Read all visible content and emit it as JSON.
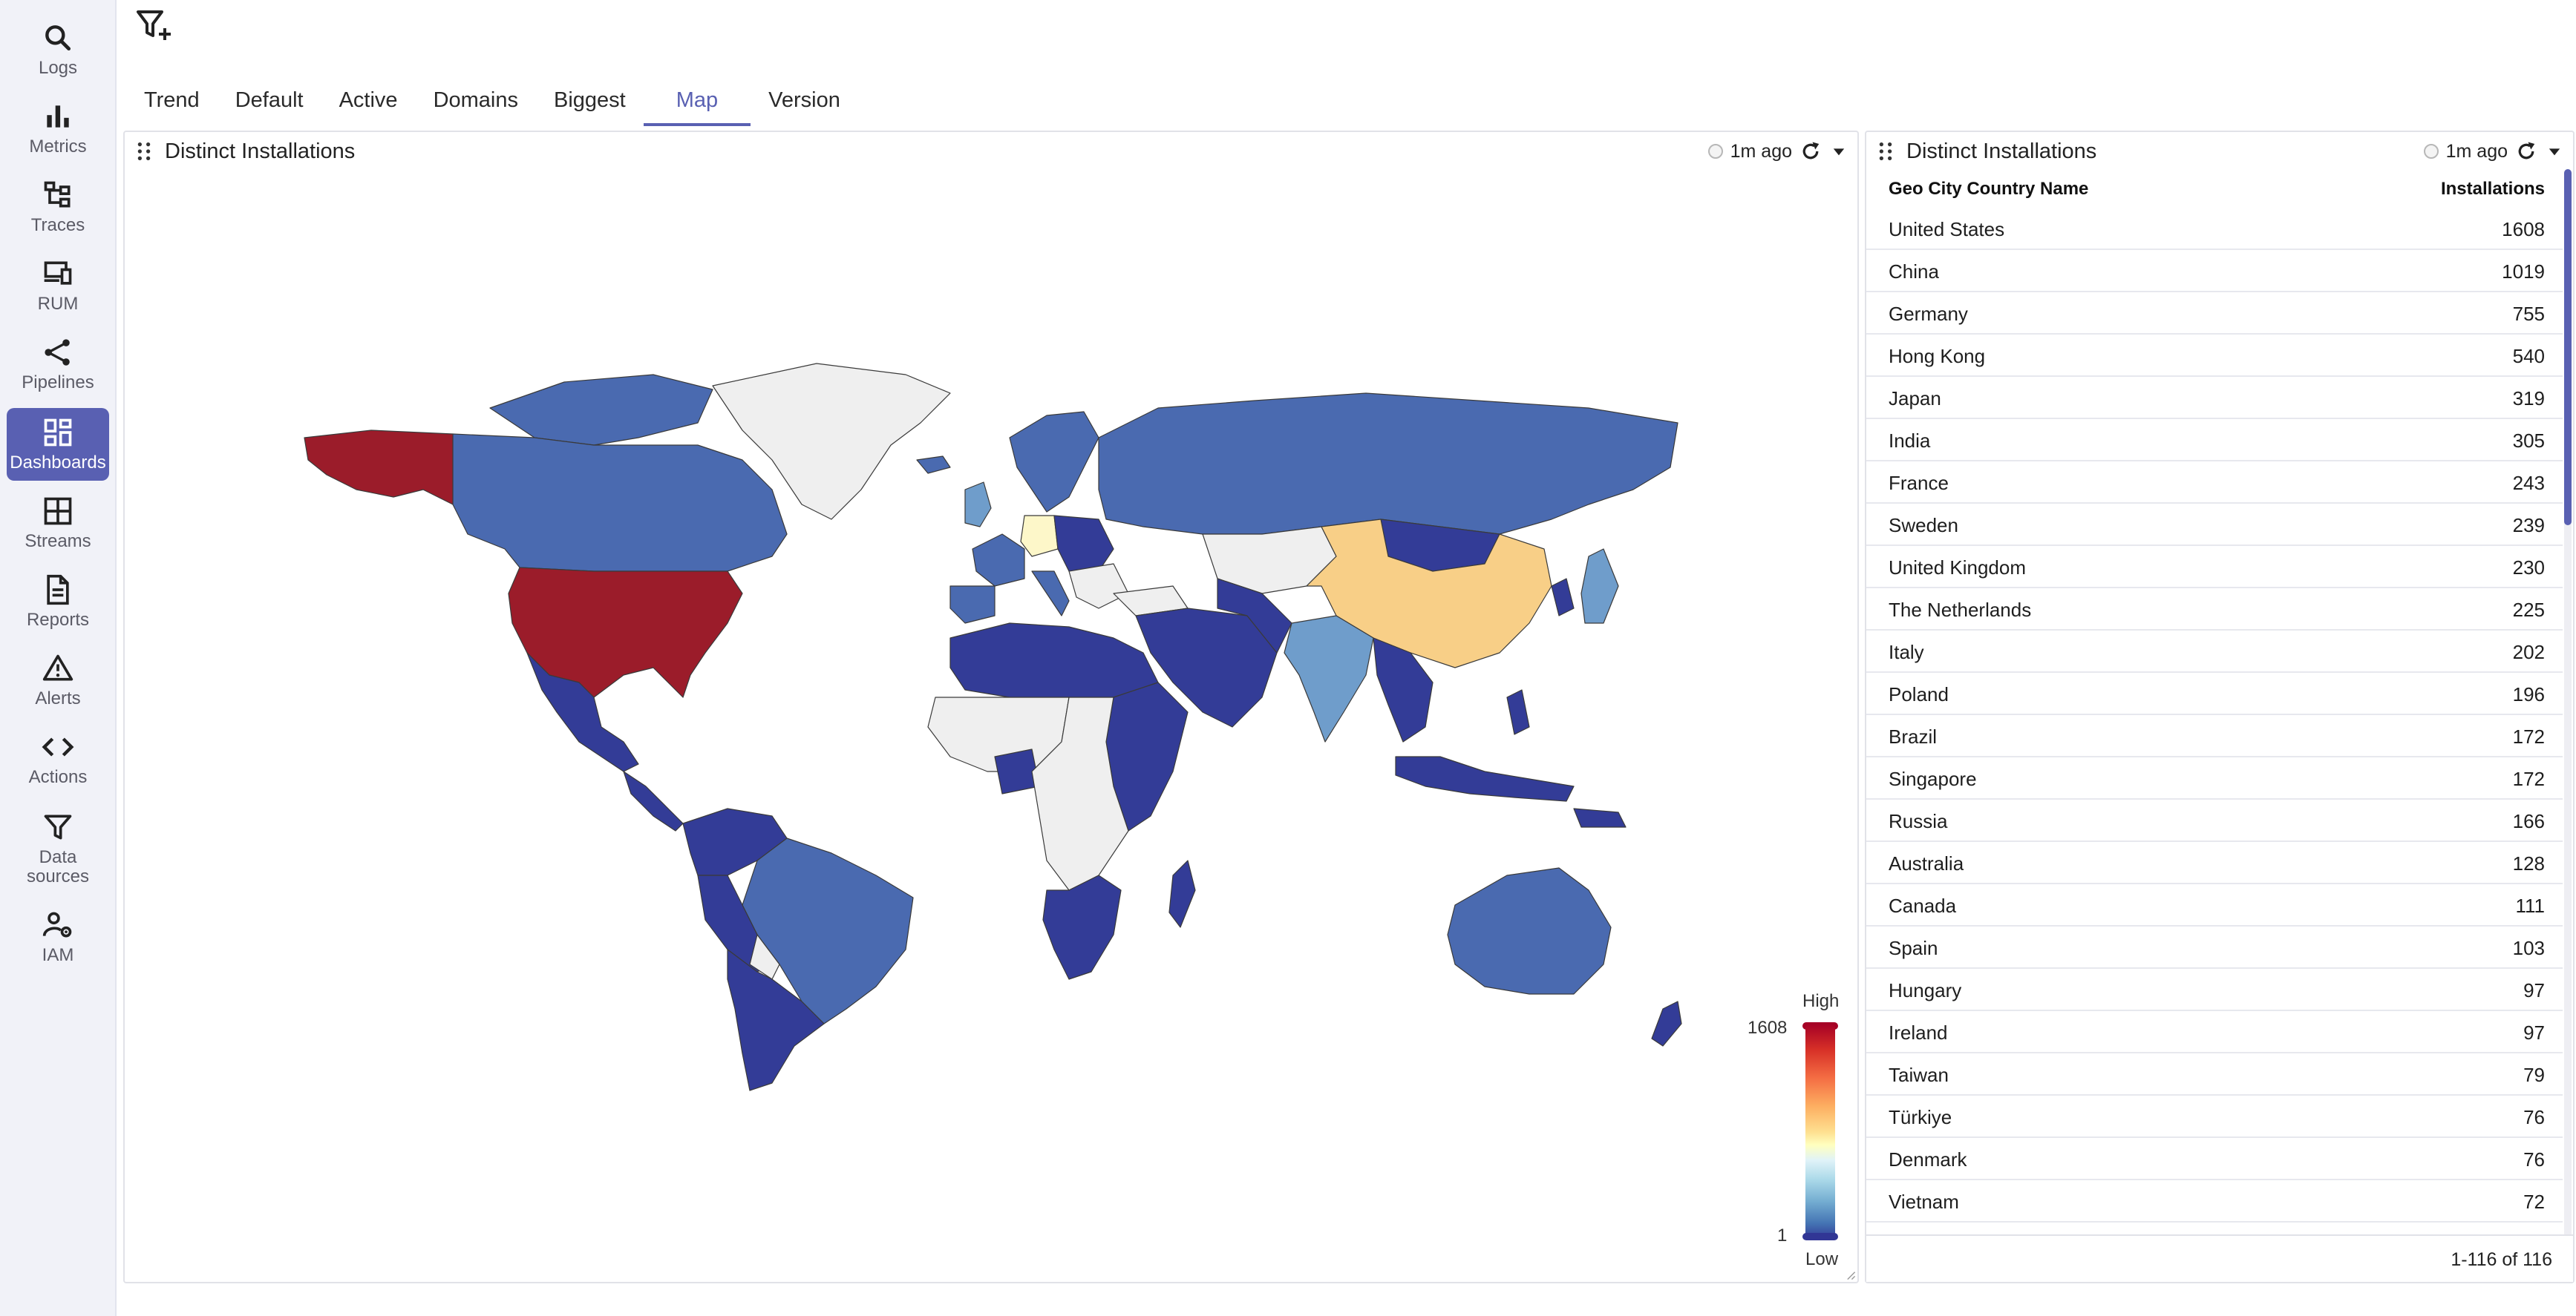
{
  "sidebar": {
    "items": [
      {
        "label": "Logs",
        "icon": "search-icon"
      },
      {
        "label": "Metrics",
        "icon": "bar-chart-icon"
      },
      {
        "label": "Traces",
        "icon": "traces-icon"
      },
      {
        "label": "RUM",
        "icon": "devices-icon"
      },
      {
        "label": "Pipelines",
        "icon": "pipeline-icon"
      },
      {
        "label": "Dashboards",
        "icon": "dashboard-icon",
        "active": true
      },
      {
        "label": "Streams",
        "icon": "grid-icon"
      },
      {
        "label": "Reports",
        "icon": "document-icon"
      },
      {
        "label": "Alerts",
        "icon": "warning-icon"
      },
      {
        "label": "Actions",
        "icon": "code-icon"
      },
      {
        "label": "Data sources",
        "icon": "funnel-icon"
      },
      {
        "label": "IAM",
        "icon": "user-gear-icon"
      }
    ]
  },
  "header": {
    "filter_icon": "filter-add-icon",
    "tabs": [
      {
        "label": "Trend"
      },
      {
        "label": "Default"
      },
      {
        "label": "Active"
      },
      {
        "label": "Domains"
      },
      {
        "label": "Biggest"
      },
      {
        "label": "Map",
        "active": true
      },
      {
        "label": "Version"
      }
    ]
  },
  "map_panel": {
    "title": "Distinct Installations",
    "refreshed": "1m ago",
    "legend": {
      "high": "High",
      "low": "Low",
      "max": "1608",
      "min": "1"
    },
    "colors": {
      "us_alaska": "#9b1c2a",
      "china": "#f8cf87",
      "germany": "#fdf7c9",
      "high_blue": "#4a6ab0",
      "mid_blue": "#6f9dcb",
      "low_blue": "#333c97",
      "no_data": "#efefef"
    }
  },
  "table_panel": {
    "title": "Distinct Installations",
    "refreshed": "1m ago",
    "columns": {
      "name": "Geo City Country Name",
      "value": "Installations"
    },
    "rows": [
      {
        "name": "United States",
        "value": "1608"
      },
      {
        "name": "China",
        "value": "1019"
      },
      {
        "name": "Germany",
        "value": "755"
      },
      {
        "name": "Hong Kong",
        "value": "540"
      },
      {
        "name": "Japan",
        "value": "319"
      },
      {
        "name": "India",
        "value": "305"
      },
      {
        "name": "France",
        "value": "243"
      },
      {
        "name": "Sweden",
        "value": "239"
      },
      {
        "name": "United Kingdom",
        "value": "230"
      },
      {
        "name": "The Netherlands",
        "value": "225"
      },
      {
        "name": "Italy",
        "value": "202"
      },
      {
        "name": "Poland",
        "value": "196"
      },
      {
        "name": "Brazil",
        "value": "172"
      },
      {
        "name": "Singapore",
        "value": "172"
      },
      {
        "name": "Russia",
        "value": "166"
      },
      {
        "name": "Australia",
        "value": "128"
      },
      {
        "name": "Canada",
        "value": "111"
      },
      {
        "name": "Spain",
        "value": "103"
      },
      {
        "name": "Hungary",
        "value": "97"
      },
      {
        "name": "Ireland",
        "value": "97"
      },
      {
        "name": "Taiwan",
        "value": "79"
      },
      {
        "name": "Türkiye",
        "value": "76"
      },
      {
        "name": "Denmark",
        "value": "76"
      },
      {
        "name": "Vietnam",
        "value": "72"
      }
    ],
    "pagination": "1-116 of 116"
  }
}
